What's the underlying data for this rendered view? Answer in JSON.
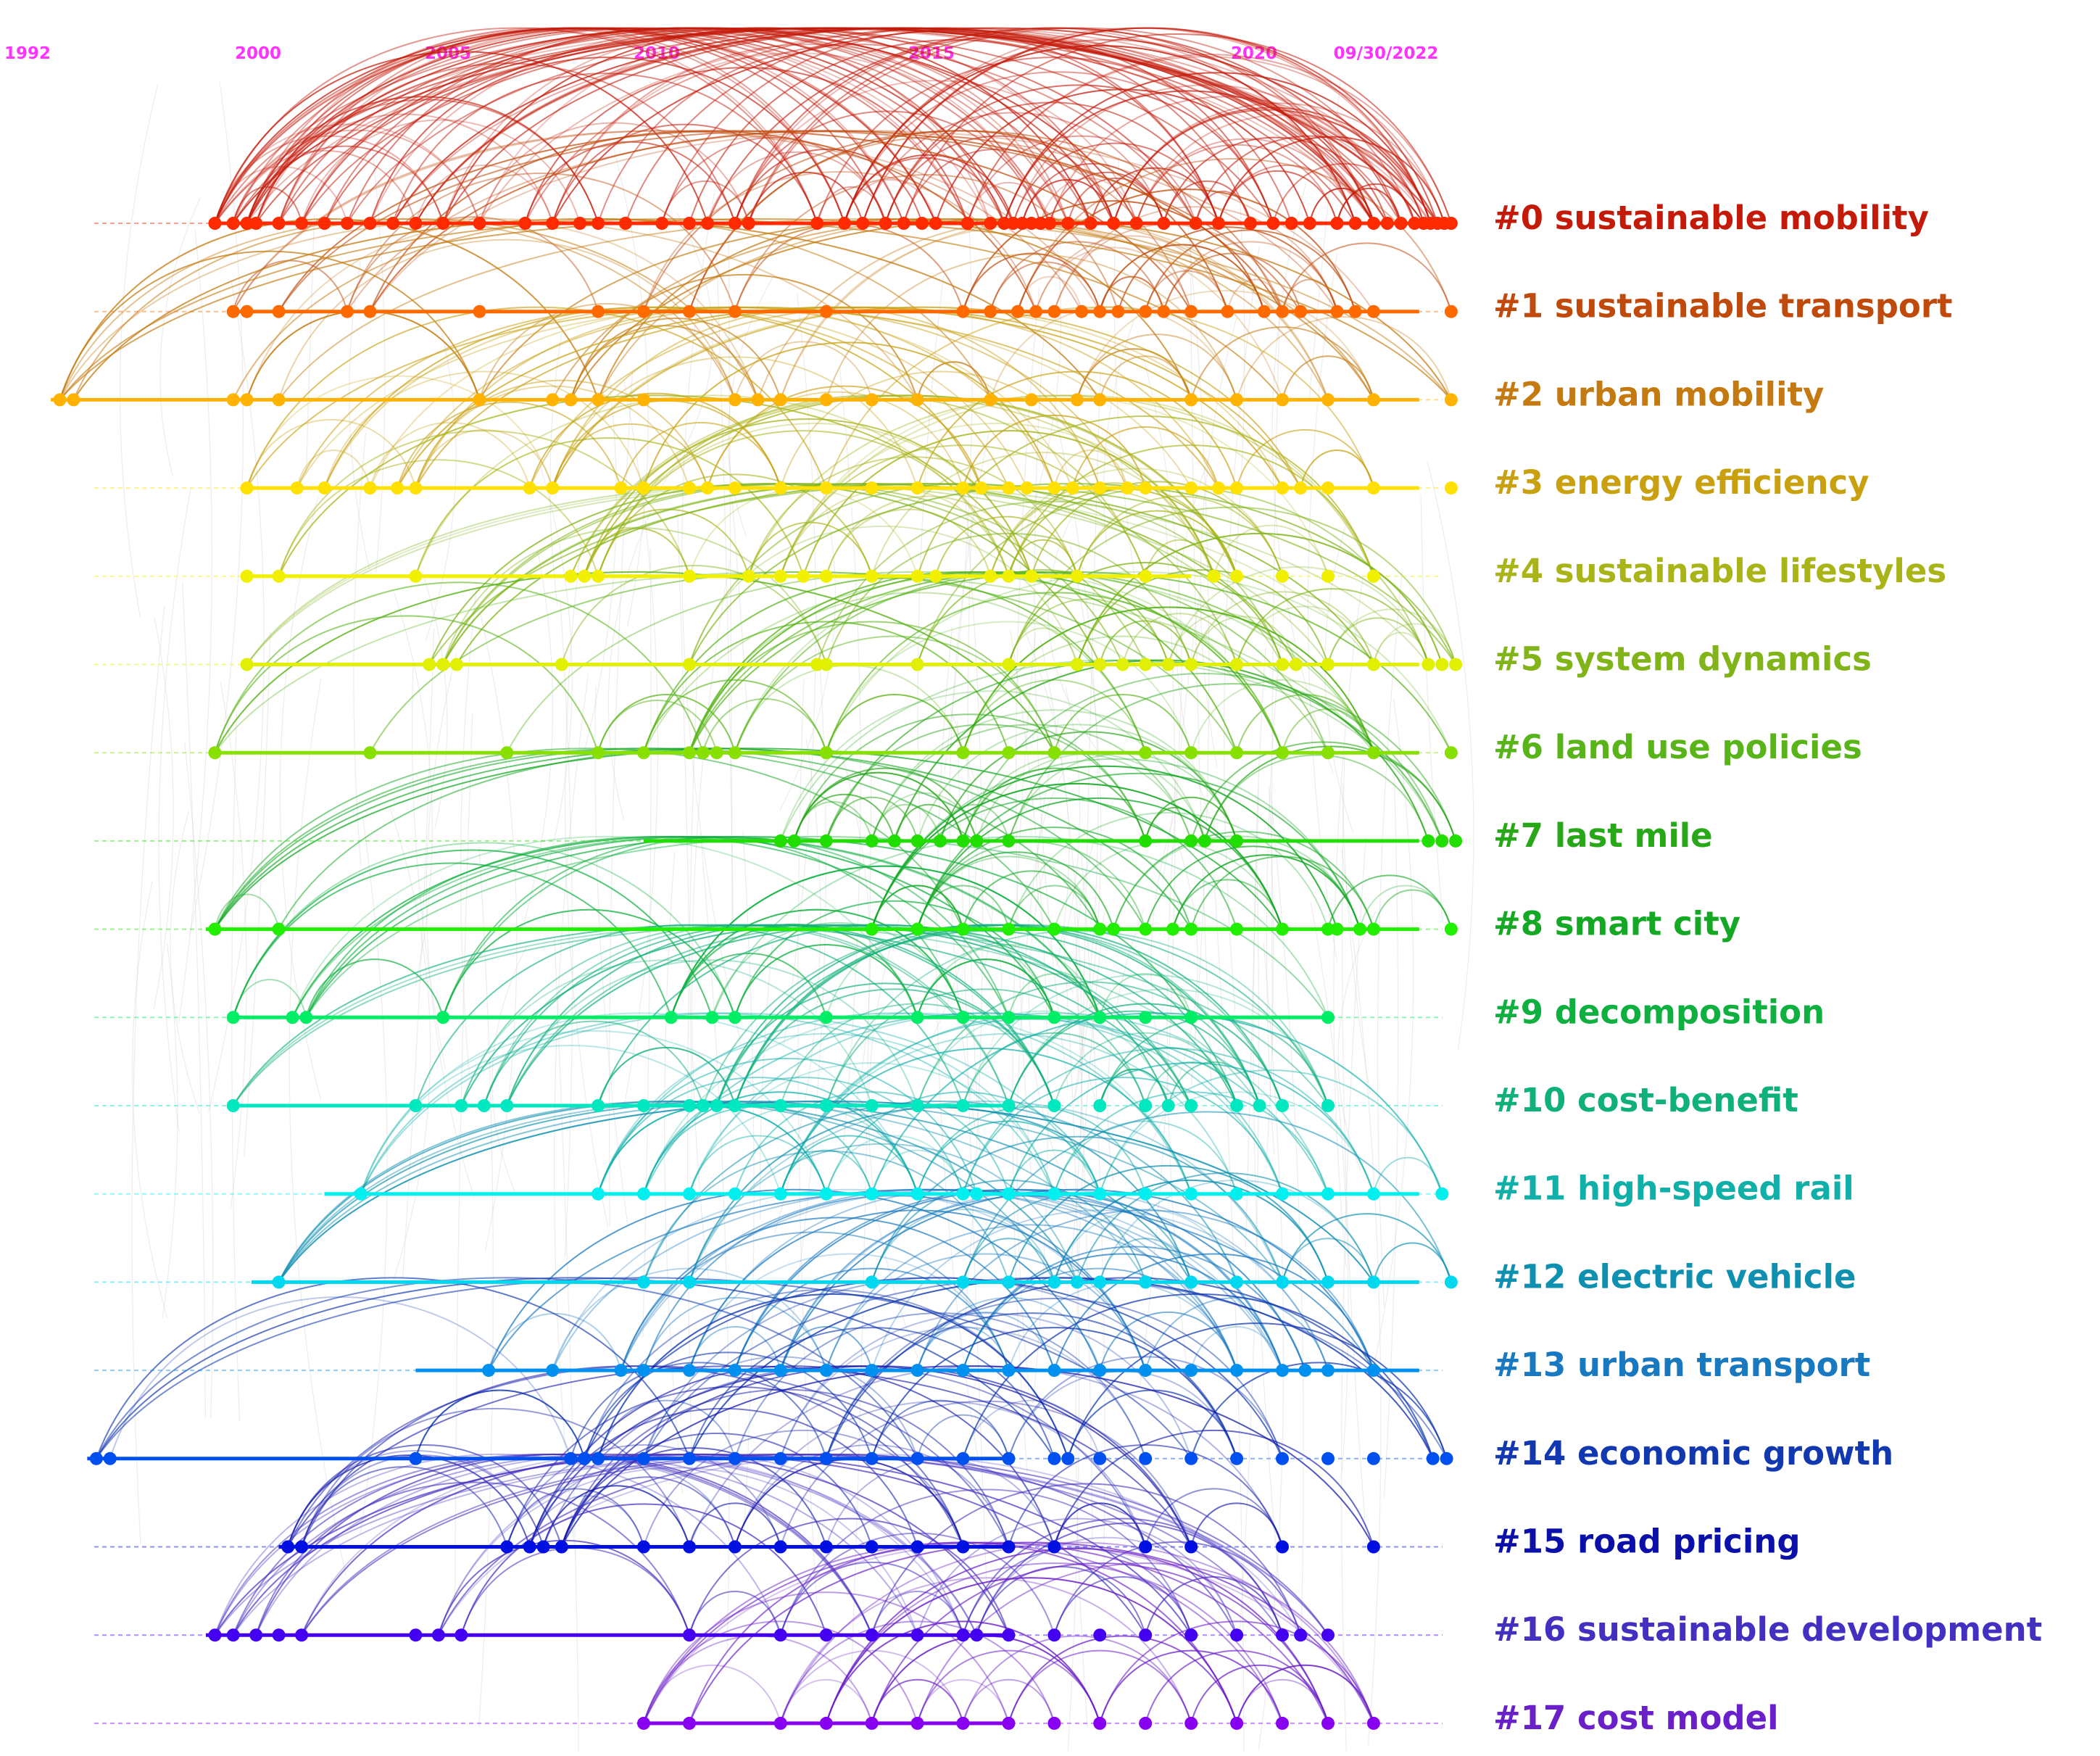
{
  "chart_data": {
    "type": "timeline",
    "year_labels": [
      "1992",
      "2000",
      "2005",
      "2010",
      "2015",
      "2020",
      "09/30/2022"
    ],
    "year_label_color": "#ff33ff",
    "x_range": [
      1992,
      2022.75
    ],
    "grey_link_color": "#d6d6d6",
    "clusters": [
      {
        "id": "#0",
        "label": "sustainable mobility",
        "color": "#ff2a00",
        "label_color": "#c41a0a",
        "span": [
          1995.6,
          2022.75
        ],
        "nodes": [
          1995.6,
          1996.0,
          1996.3,
          1996.5,
          1997.0,
          1997.5,
          1998.0,
          1998.5,
          1999.0,
          1999.5,
          2000.0,
          2000.6,
          2001.4,
          2002.4,
          2003.0,
          2003.6,
          2004.0,
          2004.6,
          2005.4,
          2006.0,
          2006.4,
          2007.0,
          2007.3,
          2008.8,
          2009.4,
          2009.8,
          2010.3,
          2010.7,
          2011.1,
          2011.4,
          2012.1,
          2012.6,
          2012.9,
          2013.1,
          2013.3,
          2013.5,
          2013.7,
          2013.9,
          2014.3,
          2014.8,
          2015.3,
          2015.8,
          2016.4,
          2017.1,
          2017.6,
          2018.3,
          2018.8,
          2019.2,
          2019.6,
          2020.2,
          2020.6,
          2021.0,
          2021.3,
          2021.6,
          2021.9,
          2022.1,
          2022.25,
          2022.4,
          2022.55,
          2022.7
        ]
      },
      {
        "id": "#1",
        "label": "sustainable transport",
        "color": "#ff6a00",
        "label_color": "#c04a0c",
        "span": [
          1996.0,
          2022.0
        ],
        "nodes": [
          1996.0,
          1996.3,
          1997.0,
          1998.5,
          1999.0,
          2001.4,
          2004.0,
          2005.0,
          2006.0,
          2007.0,
          2009.0,
          2012.0,
          2012.6,
          2013.2,
          2013.6,
          2014.0,
          2014.6,
          2015.0,
          2015.4,
          2016.0,
          2016.4,
          2017.0,
          2017.8,
          2018.6,
          2019.0,
          2019.4,
          2020.2,
          2020.6,
          2021.0,
          2022.7
        ]
      },
      {
        "id": "#2",
        "label": "urban mobility",
        "color": "#ffb300",
        "label_color": "#c47a10",
        "span": [
          1992.0,
          2022.0
        ],
        "nodes": [
          1992.2,
          1992.5,
          1996.0,
          1996.3,
          1997.0,
          2001.4,
          2003.0,
          2003.4,
          2004.0,
          2005.0,
          2007.0,
          2007.5,
          2008.0,
          2009.0,
          2010.0,
          2011.0,
          2012.6,
          2013.5,
          2014.5,
          2015.0,
          2017.0,
          2018.0,
          2019.0,
          2020.0,
          2021.0,
          2022.7
        ]
      },
      {
        "id": "#3",
        "label": "energy efficiency",
        "color": "#ffe000",
        "label_color": "#c8a010",
        "span": [
          1996.3,
          2022.0
        ],
        "nodes": [
          1996.3,
          1997.4,
          1998.0,
          1999.0,
          1999.6,
          2000.0,
          2002.5,
          2003.0,
          2004.5,
          2005.0,
          2006.0,
          2006.4,
          2007.0,
          2008.0,
          2009.0,
          2010.0,
          2011.0,
          2012.0,
          2012.4,
          2013.0,
          2013.4,
          2014.0,
          2014.4,
          2015.0,
          2015.6,
          2016.0,
          2017.0,
          2017.6,
          2018.0,
          2019.0,
          2019.4,
          2020.0,
          2021.0,
          2022.7
        ]
      },
      {
        "id": "#4",
        "label": "sustainable lifestyles",
        "color": "#f0f000",
        "label_color": "#a8b418",
        "span": [
          1996.3,
          2017.0
        ],
        "nodes": [
          1996.3,
          1997.0,
          2000.0,
          2003.4,
          2003.7,
          2004.0,
          2006.0,
          2007.3,
          2008.0,
          2008.5,
          2009.0,
          2010.0,
          2011.0,
          2011.4,
          2012.6,
          2013.0,
          2013.5,
          2014.5,
          2016.0,
          2017.5,
          2018.0,
          2019.0,
          2020.0,
          2021.0
        ]
      },
      {
        "id": "#5",
        "label": "system dynamics",
        "color": "#e0f000",
        "label_color": "#80b418",
        "span": [
          1996.3,
          2022.0
        ],
        "nodes": [
          1996.3,
          2000.3,
          2000.6,
          2000.9,
          2003.2,
          2006.0,
          2008.8,
          2009.0,
          2011.0,
          2013.0,
          2014.5,
          2015.0,
          2015.5,
          2016.0,
          2016.5,
          2017.0,
          2018.0,
          2019.0,
          2019.3,
          2020.0,
          2021.0,
          2022.2,
          2022.5,
          2022.8
        ]
      },
      {
        "id": "#6",
        "label": "land use policies",
        "color": "#88e000",
        "label_color": "#58b418",
        "span": [
          1995.6,
          2022.0
        ],
        "nodes": [
          1995.6,
          1999.0,
          2002.0,
          2004.0,
          2005.0,
          2006.0,
          2006.3,
          2006.6,
          2007.0,
          2009.0,
          2012.0,
          2013.0,
          2014.0,
          2016.0,
          2017.0,
          2018.0,
          2019.0,
          2020.0,
          2021.0,
          2022.7
        ]
      },
      {
        "id": "#7",
        "label": "last mile",
        "color": "#22dd00",
        "label_color": "#28a818",
        "span": [
          2005.0,
          2022.0
        ],
        "nodes": [
          2008.0,
          2008.3,
          2009.0,
          2010.0,
          2010.5,
          2011.0,
          2011.5,
          2012.0,
          2012.3,
          2013.0,
          2016.0,
          2017.0,
          2017.3,
          2018.0,
          2022.2,
          2022.5,
          2022.8
        ]
      },
      {
        "id": "#8",
        "label": "smart city",
        "color": "#22ee00",
        "label_color": "#14a824",
        "span": [
          1995.4,
          2022.0
        ],
        "nodes": [
          1995.6,
          1997.0,
          2010.0,
          2011.0,
          2012.0,
          2013.0,
          2014.0,
          2015.0,
          2015.3,
          2016.0,
          2016.6,
          2017.0,
          2018.0,
          2019.0,
          2020.0,
          2020.2,
          2020.7,
          2021.0,
          2022.7
        ]
      },
      {
        "id": "#9",
        "label": "decomposition",
        "color": "#00ee66",
        "label_color": "#10b040",
        "span": [
          1996.0,
          2020.0
        ],
        "nodes": [
          1996.0,
          1997.3,
          1997.6,
          2000.6,
          2005.6,
          2006.5,
          2007.0,
          2009.0,
          2011.0,
          2012.0,
          2013.0,
          2014.0,
          2015.0,
          2016.0,
          2017.0,
          2020.0
        ]
      },
      {
        "id": "#10",
        "label": "cost-benefit",
        "color": "#00e8c0",
        "label_color": "#10b07a",
        "span": [
          1996.0,
          2013.0
        ],
        "nodes": [
          1996.0,
          2000.0,
          2001.0,
          2001.5,
          2002.0,
          2004.0,
          2005.0,
          2006.0,
          2006.3,
          2006.6,
          2007.0,
          2008.0,
          2009.0,
          2010.0,
          2011.0,
          2012.0,
          2013.0,
          2014.0,
          2015.0,
          2016.0,
          2016.5,
          2017.0,
          2018.0,
          2018.5,
          2019.0,
          2020.0
        ]
      },
      {
        "id": "#11",
        "label": "high-speed rail",
        "color": "#00f0f0",
        "label_color": "#10b0a8",
        "span": [
          1998.0,
          2022.0
        ],
        "nodes": [
          1998.8,
          2004.0,
          2005.0,
          2006.0,
          2007.0,
          2008.0,
          2009.0,
          2010.0,
          2011.0,
          2012.0,
          2012.3,
          2013.0,
          2014.0,
          2015.0,
          2016.0,
          2017.0,
          2018.0,
          2019.0,
          2020.0,
          2021.0,
          2022.5
        ]
      },
      {
        "id": "#12",
        "label": "electric vehicle",
        "color": "#00d8f0",
        "label_color": "#1090b0",
        "span": [
          1996.4,
          2022.0
        ],
        "nodes": [
          1997.0,
          2005.0,
          2006.0,
          2010.0,
          2012.0,
          2013.0,
          2014.0,
          2014.5,
          2015.0,
          2016.0,
          2017.0,
          2018.0,
          2019.0,
          2020.0,
          2021.0,
          2022.7
        ]
      },
      {
        "id": "#13",
        "label": "urban transport",
        "color": "#0090f0",
        "label_color": "#1878c0",
        "span": [
          2000.0,
          2022.0
        ],
        "nodes": [
          2001.6,
          2003.0,
          2004.5,
          2005.0,
          2006.0,
          2007.0,
          2008.0,
          2009.0,
          2010.0,
          2011.0,
          2012.0,
          2013.0,
          2014.0,
          2015.0,
          2016.0,
          2017.0,
          2018.0,
          2019.0,
          2019.5,
          2020.0,
          2021.0
        ]
      },
      {
        "id": "#14",
        "label": "economic growth",
        "color": "#0050f0",
        "label_color": "#1238b0",
        "span": [
          1992.8,
          2013.0
        ],
        "nodes": [
          1993.0,
          1993.3,
          2000.0,
          2003.4,
          2003.7,
          2004.0,
          2005.0,
          2006.0,
          2007.0,
          2008.0,
          2009.0,
          2010.0,
          2011.0,
          2012.0,
          2013.0,
          2014.0,
          2014.3,
          2015.0,
          2016.0,
          2017.0,
          2018.0,
          2019.0,
          2020.0,
          2021.0,
          2022.3,
          2022.6
        ]
      },
      {
        "id": "#15",
        "label": "road pricing",
        "color": "#0010e0",
        "label_color": "#0a10a8",
        "span": [
          1997.0,
          2013.0
        ],
        "nodes": [
          1997.2,
          1997.5,
          2002.0,
          2002.5,
          2002.8,
          2003.2,
          2005.0,
          2006.0,
          2007.0,
          2008.0,
          2009.0,
          2010.0,
          2011.0,
          2012.0,
          2013.0,
          2014.0,
          2016.0,
          2017.0,
          2019.0,
          2021.0
        ]
      },
      {
        "id": "#16",
        "label": "sustainable development",
        "color": "#4400f0",
        "label_color": "#4430c0",
        "span": [
          1995.4,
          2013.0
        ],
        "nodes": [
          1995.6,
          1996.0,
          1996.5,
          1997.0,
          1997.5,
          2000.0,
          2000.5,
          2001.0,
          2006.0,
          2008.0,
          2009.0,
          2010.0,
          2011.0,
          2012.0,
          2012.3,
          2013.0,
          2014.0,
          2015.0,
          2016.0,
          2017.0,
          2018.0,
          2019.0,
          2019.4,
          2020.0
        ]
      },
      {
        "id": "#17",
        "label": "cost model",
        "color": "#8800f0",
        "label_color": "#6a20c8",
        "span": [
          2005.0,
          2013.0
        ],
        "nodes": [
          2005.0,
          2006.0,
          2008.0,
          2009.0,
          2010.0,
          2011.0,
          2012.0,
          2013.0,
          2014.0,
          2015.0,
          2016.0,
          2017.0,
          2018.0,
          2019.0,
          2020.0,
          2021.0
        ]
      }
    ]
  }
}
